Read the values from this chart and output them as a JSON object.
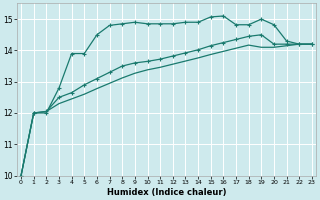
{
  "xlabel": "Humidex (Indice chaleur)",
  "bg_color": "#ceeaed",
  "grid_color": "#ffffff",
  "line_color": "#1a7a6e",
  "ylim": [
    10,
    15.5
  ],
  "xlim": [
    -0.3,
    23.3
  ],
  "yticks": [
    10,
    11,
    12,
    13,
    14,
    15
  ],
  "xticks": [
    0,
    1,
    2,
    3,
    4,
    5,
    6,
    7,
    8,
    9,
    10,
    11,
    12,
    13,
    14,
    15,
    16,
    17,
    18,
    19,
    20,
    21,
    22,
    23
  ],
  "s1": [
    10.0,
    12.0,
    12.0,
    12.8,
    13.9,
    13.9,
    14.5,
    14.8,
    14.85,
    14.9,
    14.85,
    14.85,
    14.85,
    14.9,
    14.9,
    15.07,
    15.1,
    14.82,
    14.82,
    15.0,
    14.82,
    14.3,
    14.2,
    14.2
  ],
  "s2": [
    10.0,
    12.0,
    12.05,
    12.5,
    12.65,
    12.9,
    13.1,
    13.3,
    13.5,
    13.6,
    13.65,
    13.72,
    13.82,
    13.92,
    14.02,
    14.15,
    14.25,
    14.35,
    14.45,
    14.5,
    14.2,
    14.2,
    14.2,
    14.2
  ],
  "s3": [
    10.0,
    12.0,
    12.05,
    12.3,
    12.45,
    12.6,
    12.78,
    12.95,
    13.12,
    13.27,
    13.38,
    13.46,
    13.56,
    13.66,
    13.76,
    13.87,
    13.97,
    14.07,
    14.17,
    14.1,
    14.1,
    14.15,
    14.2,
    14.2
  ]
}
